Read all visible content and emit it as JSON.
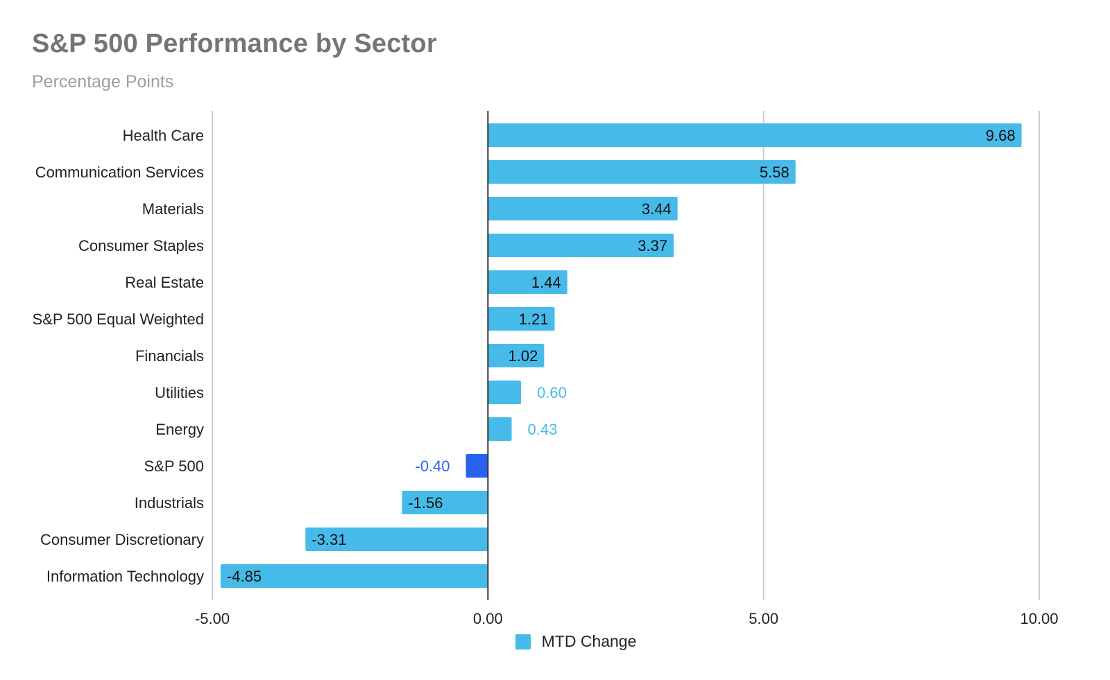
{
  "chart_data": {
    "type": "bar",
    "orientation": "horizontal",
    "title": "S&P 500 Performance by Sector",
    "subtitle": "Percentage Points",
    "categories": [
      "Health Care",
      "Communication Services",
      "Materials",
      "Consumer Staples",
      "Real Estate",
      "S&P 500 Equal Weighted",
      "Financials",
      "Utilities",
      "Energy",
      "S&P 500",
      "Industrials",
      "Consumer Discretionary",
      "Information Technology"
    ],
    "series": [
      {
        "name": "MTD Change",
        "values": [
          9.68,
          5.58,
          3.44,
          3.37,
          1.44,
          1.21,
          1.02,
          0.6,
          0.43,
          -0.4,
          -1.56,
          -3.31,
          -4.85
        ],
        "data_labels": [
          "9.68",
          "5.58",
          "3.44",
          "3.37",
          "1.44",
          "1.21",
          "1.02",
          "0.60",
          "0.43",
          "-0.40",
          "-1.56",
          "-3.31",
          "-4.85"
        ],
        "color": "#46bbea"
      }
    ],
    "highlight": {
      "category": "S&P 500",
      "color": "#2962f0"
    },
    "xlim": [
      -5,
      10
    ],
    "x_ticks": [
      -5,
      0,
      5,
      10
    ],
    "x_tick_labels": [
      "-5.00",
      "0.00",
      "5.00",
      "10.00"
    ],
    "grid": true,
    "legend": {
      "position": "bottom",
      "entries": [
        "MTD Change"
      ]
    },
    "colors": {
      "bar": "#46bbea",
      "highlight": "#2962f0",
      "label_inside": "#111111",
      "gridline": "#cccccc",
      "zero_line": "#333333"
    }
  }
}
